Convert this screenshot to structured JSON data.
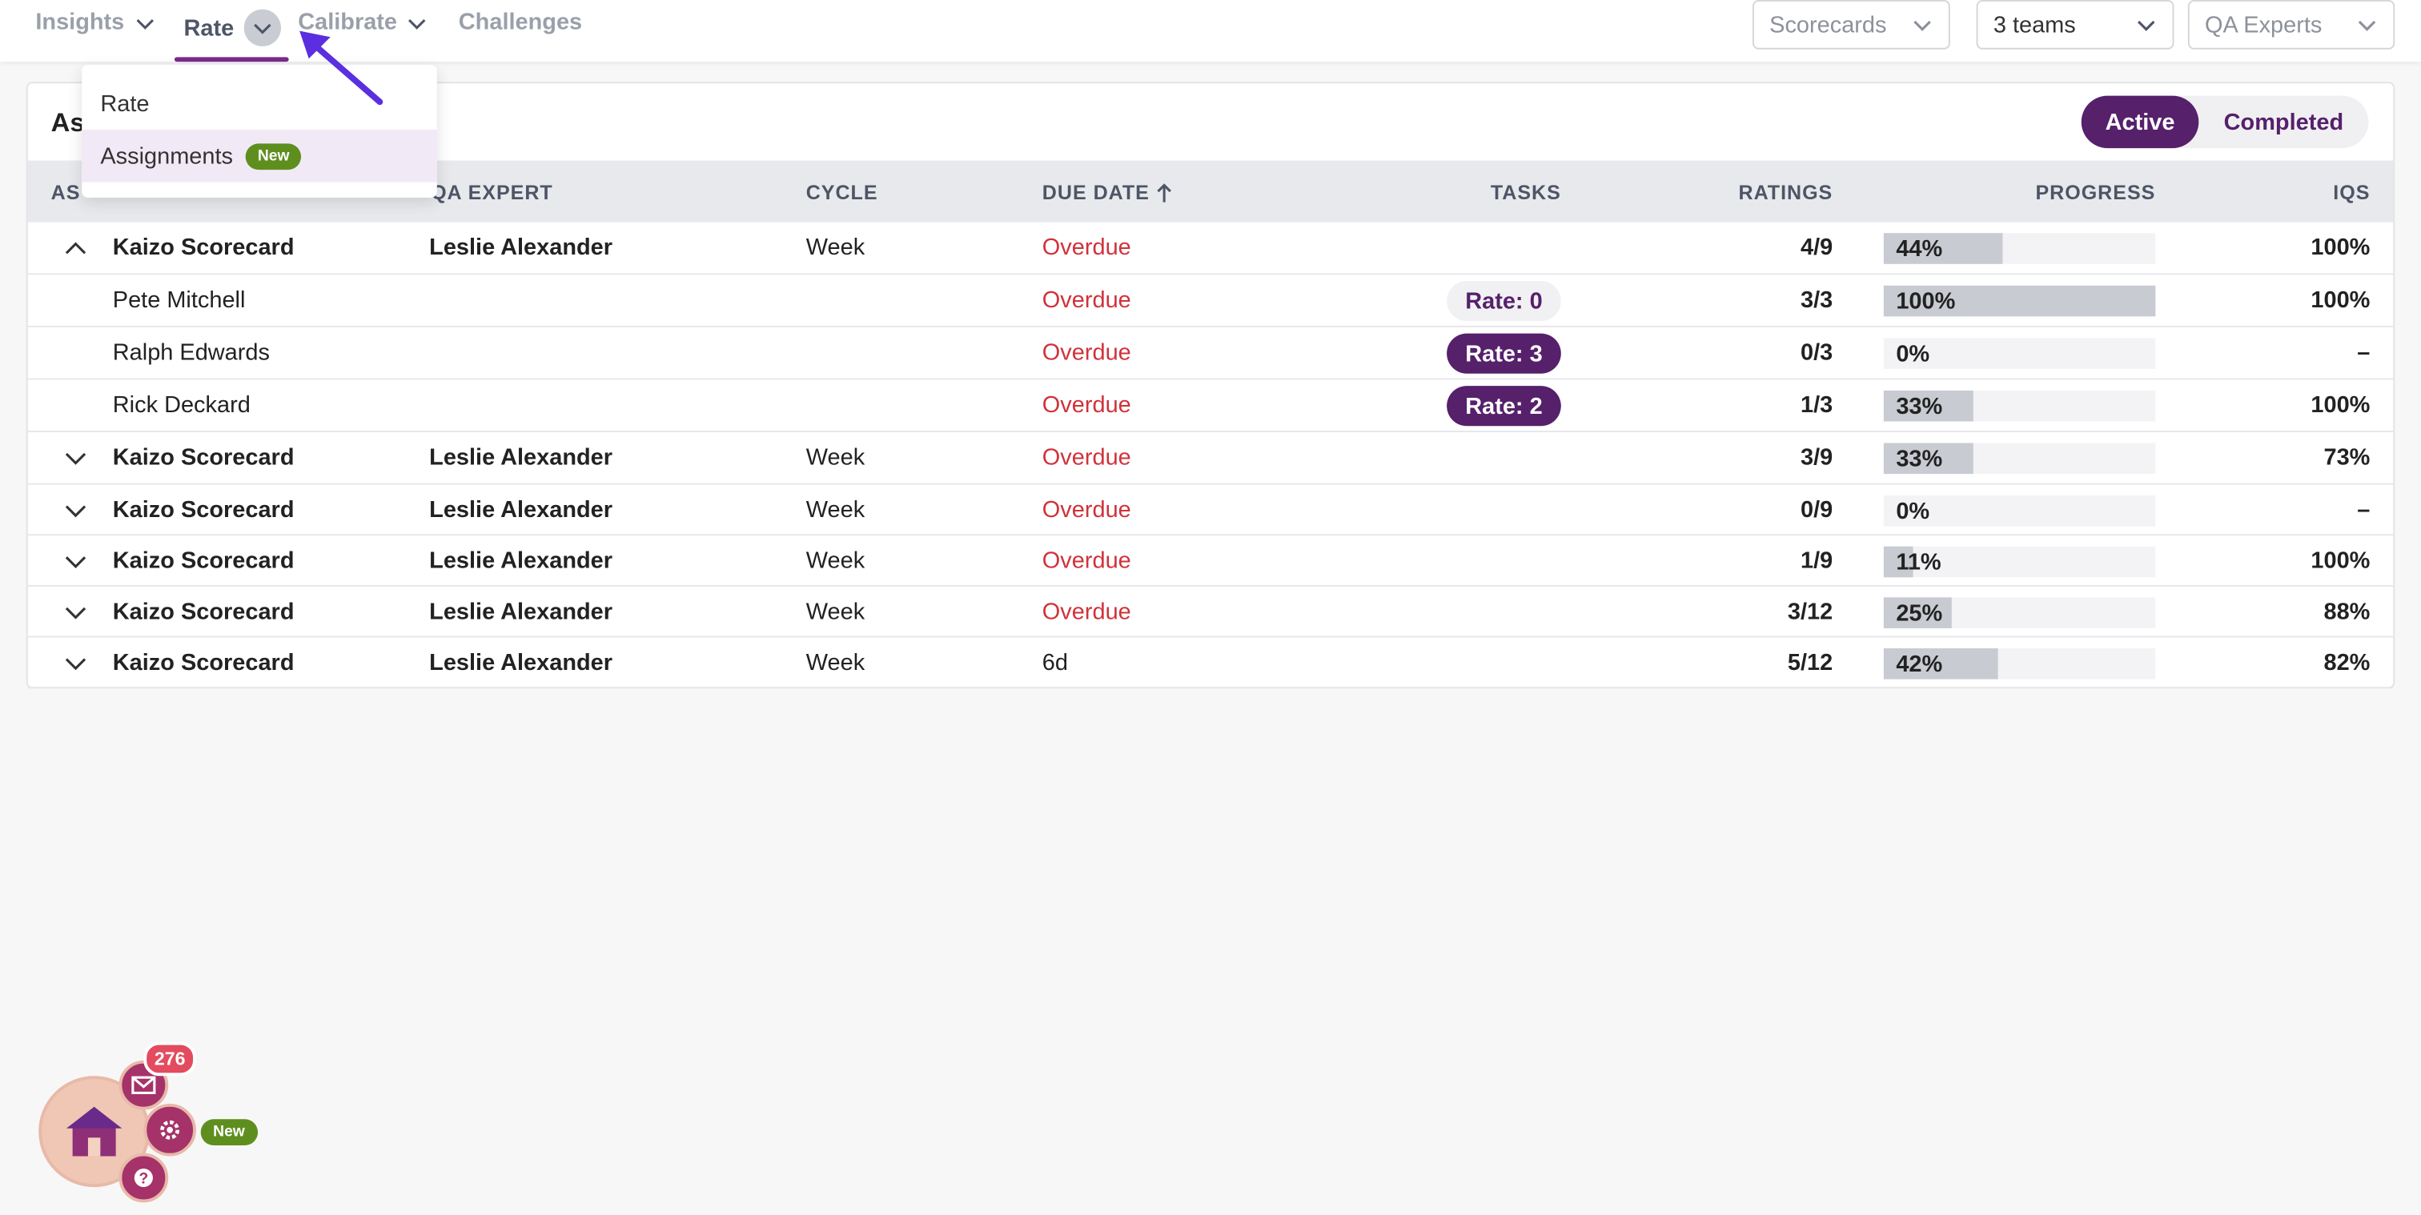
{
  "nav": {
    "tabs": [
      {
        "label": "Insights"
      },
      {
        "label": "Rate"
      },
      {
        "label": "Calibrate"
      },
      {
        "label": "Challenges"
      }
    ],
    "filters": [
      {
        "label": "Scorecards"
      },
      {
        "label": "3 teams"
      },
      {
        "label": "QA Experts"
      }
    ]
  },
  "dropdown": {
    "items": [
      {
        "label": "Rate"
      },
      {
        "label": "Assignments",
        "badge": "New"
      }
    ]
  },
  "card": {
    "title": "As",
    "toggle": {
      "active": "Active",
      "completed": "Completed"
    },
    "columns": {
      "assignment": "AS",
      "qa_expert": "QA EXPERT",
      "cycle": "CYCLE",
      "due_date": "DUE DATE",
      "tasks": "TASKS",
      "ratings": "RATINGS",
      "progress": "PROGRESS",
      "iqs": "IQS"
    },
    "rows": [
      {
        "name": "Kaizo Scorecard",
        "expert": "Leslie Alexander",
        "cycle": "Week",
        "due": "Overdue",
        "task": "",
        "ratings": "4/9",
        "progress": "44%",
        "progress_value": 0.44,
        "iqs": "100%"
      },
      {
        "name": "Pete Mitchell",
        "expert": "",
        "cycle": "",
        "due": "Overdue",
        "task": "Rate: 0",
        "ratings": "3/3",
        "progress": "100%",
        "progress_value": 1.0,
        "iqs": "100%"
      },
      {
        "name": "Ralph Edwards",
        "expert": "",
        "cycle": "",
        "due": "Overdue",
        "task": "Rate: 3",
        "ratings": "0/3",
        "progress": "0%",
        "progress_value": 0.0,
        "iqs": "–"
      },
      {
        "name": "Rick Deckard",
        "expert": "",
        "cycle": "",
        "due": "Overdue",
        "task": "Rate: 2",
        "ratings": "1/3",
        "progress": "33%",
        "progress_value": 0.33,
        "iqs": "100%"
      },
      {
        "name": "Kaizo Scorecard",
        "expert": "Leslie Alexander",
        "cycle": "Week",
        "due": "Overdue",
        "task": "",
        "ratings": "3/9",
        "progress": "33%",
        "progress_value": 0.33,
        "iqs": "73%"
      },
      {
        "name": "Kaizo Scorecard",
        "expert": "Leslie Alexander",
        "cycle": "Week",
        "due": "Overdue",
        "task": "",
        "ratings": "0/9",
        "progress": "0%",
        "progress_value": 0.0,
        "iqs": "–"
      },
      {
        "name": "Kaizo Scorecard",
        "expert": "Leslie Alexander",
        "cycle": "Week",
        "due": "Overdue",
        "task": "",
        "ratings": "1/9",
        "progress": "11%",
        "progress_value": 0.11,
        "iqs": "100%"
      },
      {
        "name": "Kaizo Scorecard",
        "expert": "Leslie Alexander",
        "cycle": "Week",
        "due": "Overdue",
        "task": "",
        "ratings": "3/12",
        "progress": "25%",
        "progress_value": 0.25,
        "iqs": "88%"
      },
      {
        "name": "Kaizo Scorecard",
        "expert": "Leslie Alexander",
        "cycle": "Week",
        "due": "6d",
        "task": "",
        "ratings": "5/12",
        "progress": "42%",
        "progress_value": 0.42,
        "iqs": "82%"
      }
    ]
  },
  "widget": {
    "count": "276",
    "badge": "New"
  },
  "colors": {
    "accent": "#56206b",
    "overdue": "#d0323a",
    "new_badge": "#5e8f1e"
  }
}
